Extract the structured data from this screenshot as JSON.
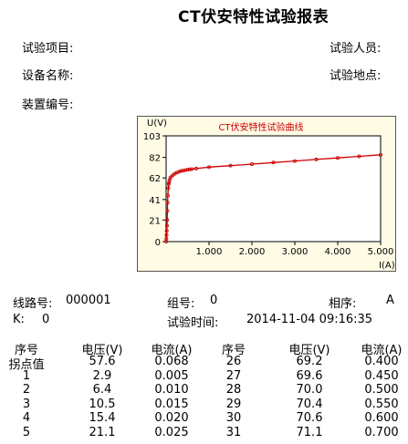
{
  "header": {
    "title": "CT伏安特性试验报表",
    "test_item_label": "试验项目:",
    "tester_label": "试验人员:",
    "device_name_label": "设备名称:",
    "test_site_label": "试验地点:",
    "device_no_label": "装置编号:"
  },
  "chart_data": {
    "type": "line",
    "title": "CT伏安特性试验曲线",
    "ylabel": "U(V)",
    "xlabel": "I(A)",
    "xlim": [
      0,
      5.0
    ],
    "ylim": [
      0,
      103
    ],
    "x_ticks": [
      "1.000",
      "2.000",
      "3.000",
      "4.000",
      "5.000"
    ],
    "y_ticks": [
      "103",
      "82",
      "62",
      "41",
      "21",
      "0"
    ],
    "grid": false,
    "x": [
      0.0,
      0.005,
      0.01,
      0.015,
      0.02,
      0.025,
      0.03,
      0.035,
      0.04,
      0.05,
      0.06,
      0.068,
      0.08,
      0.1,
      0.15,
      0.2,
      0.25,
      0.3,
      0.35,
      0.4,
      0.45,
      0.5,
      0.55,
      0.6,
      0.7,
      1.0,
      1.5,
      2.0,
      2.5,
      3.0,
      3.5,
      4.0,
      4.5,
      5.0
    ],
    "y": [
      0.0,
      2.9,
      6.4,
      10.5,
      15.4,
      21.1,
      30.0,
      38.0,
      45.0,
      52.0,
      56.0,
      57.6,
      60.0,
      62.5,
      64.5,
      66.0,
      67.2,
      68.0,
      68.8,
      69.2,
      69.6,
      70.0,
      70.4,
      70.6,
      71.1,
      72.5,
      74.0,
      75.5,
      77.0,
      78.5,
      80.0,
      81.5,
      83.0,
      84.5
    ],
    "line_color": "#cc0000"
  },
  "info": {
    "line_no_label": "线路号:",
    "line_no_value": "000001",
    "group_label": "组号:",
    "group_value": "0",
    "phase_label": "相序:",
    "phase_value": "A",
    "k_label": "K:",
    "k_value": "0",
    "time_label": "试验时间:",
    "time_value": "2014-11-04 09:16:35"
  },
  "table": {
    "headers": [
      "序号",
      "电压(V)",
      "电流(A)",
      "序号",
      "电压(V)",
      "电流(A)"
    ],
    "rows": [
      [
        "拐点值",
        "57.6",
        "0.068",
        "26",
        "69.2",
        "0.400"
      ],
      [
        "1",
        "2.9",
        "0.005",
        "27",
        "69.6",
        "0.450"
      ],
      [
        "2",
        "6.4",
        "0.010",
        "28",
        "70.0",
        "0.500"
      ],
      [
        "3",
        "10.5",
        "0.015",
        "29",
        "70.4",
        "0.550"
      ],
      [
        "4",
        "15.4",
        "0.020",
        "30",
        "70.6",
        "0.600"
      ],
      [
        "5",
        "21.1",
        "0.025",
        "31",
        "71.1",
        "0.700"
      ]
    ]
  }
}
